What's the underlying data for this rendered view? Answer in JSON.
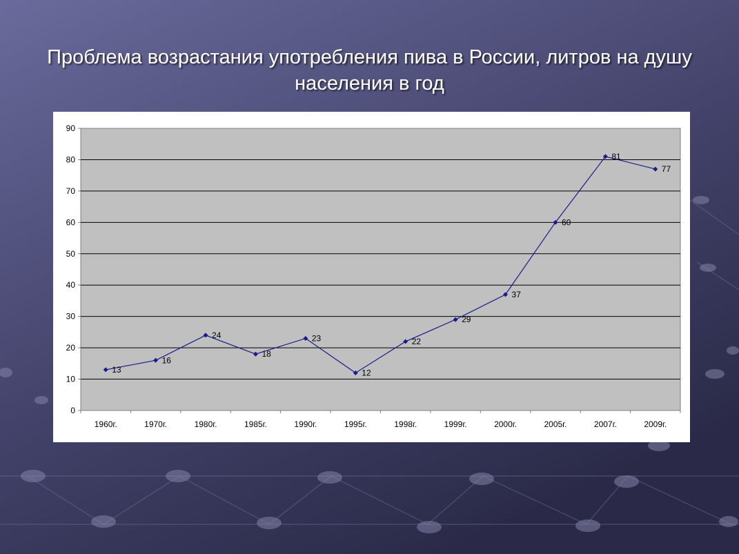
{
  "slide": {
    "title": "Проблема возрастания употребления пива в России, литров на душу населения в год"
  },
  "colors": {
    "background_top": "#6a6a9a",
    "background_bottom": "#2c2c4c",
    "plot_area": "#c0c0c0",
    "series_line": "#1a1a8c",
    "gridline": "#000000"
  },
  "chart_data": {
    "type": "line",
    "title": "Проблема возрастания употребления пива в России, литров на душу населения в год",
    "categories": [
      "1960г.",
      "1970г.",
      "1980г.",
      "1985г.",
      "1990г.",
      "1995г.",
      "1998г.",
      "1999г.",
      "2000г.",
      "2005г.",
      "2007г.",
      "2009г."
    ],
    "series": [
      {
        "values": [
          13,
          16,
          24,
          18,
          23,
          12,
          22,
          29,
          37,
          60,
          81,
          77
        ]
      }
    ],
    "ylim": [
      0,
      90
    ],
    "yticks": [
      0,
      10,
      20,
      30,
      40,
      50,
      60,
      70,
      80,
      90
    ],
    "xlabel": "",
    "ylabel": "",
    "grid": true,
    "legend": "none",
    "data_labels": true
  }
}
